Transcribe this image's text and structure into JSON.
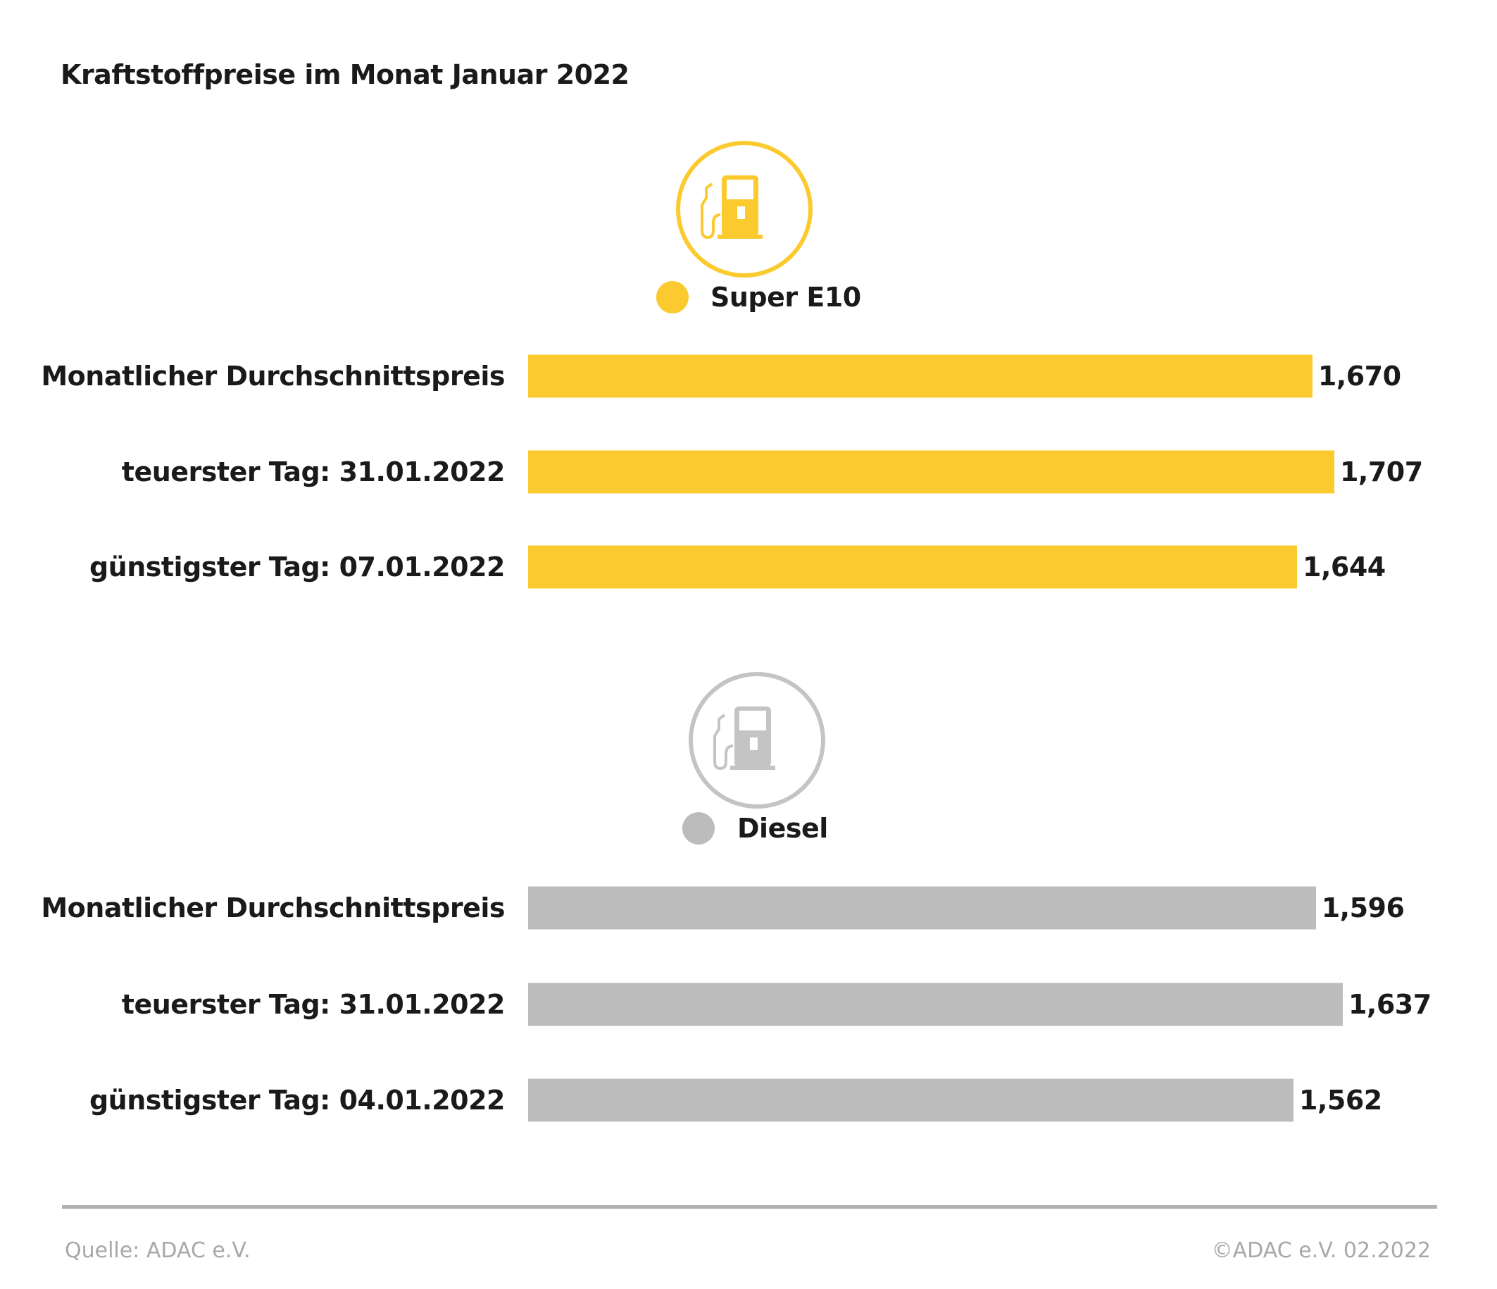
{
  "chart_data": {
    "type": "bar",
    "orientation": "horizontal",
    "title": "Kraftstoffpreise im Monat Januar 2022",
    "groups": [
      {
        "name": "Super E10",
        "color": "#fbca2e",
        "icon": "fuel-pump-icon",
        "categories": [
          "Monatlicher Durchschnittspreis",
          "teuerster Tag: 31.01.2022",
          "günstigster Tag: 07.01.2022"
        ],
        "values": [
          1.67,
          1.707,
          1.644
        ],
        "labels": [
          "1,670",
          "1,707",
          "1,644"
        ]
      },
      {
        "name": "Diesel",
        "color": "#bcbcbc",
        "icon": "fuel-pump-icon",
        "categories": [
          "Monatlicher Durchschnittspreis",
          "teuerster Tag: 31.01.2022",
          "günstigster Tag: 04.01.2022"
        ],
        "values": [
          1.596,
          1.637,
          1.562
        ],
        "labels": [
          "1,596",
          "1,637",
          "1,562"
        ]
      }
    ],
    "grid": false
  },
  "footer": {
    "source": "Quelle: ADAC e.V.",
    "copyright": "©ADAC e.V. 02.2022"
  }
}
